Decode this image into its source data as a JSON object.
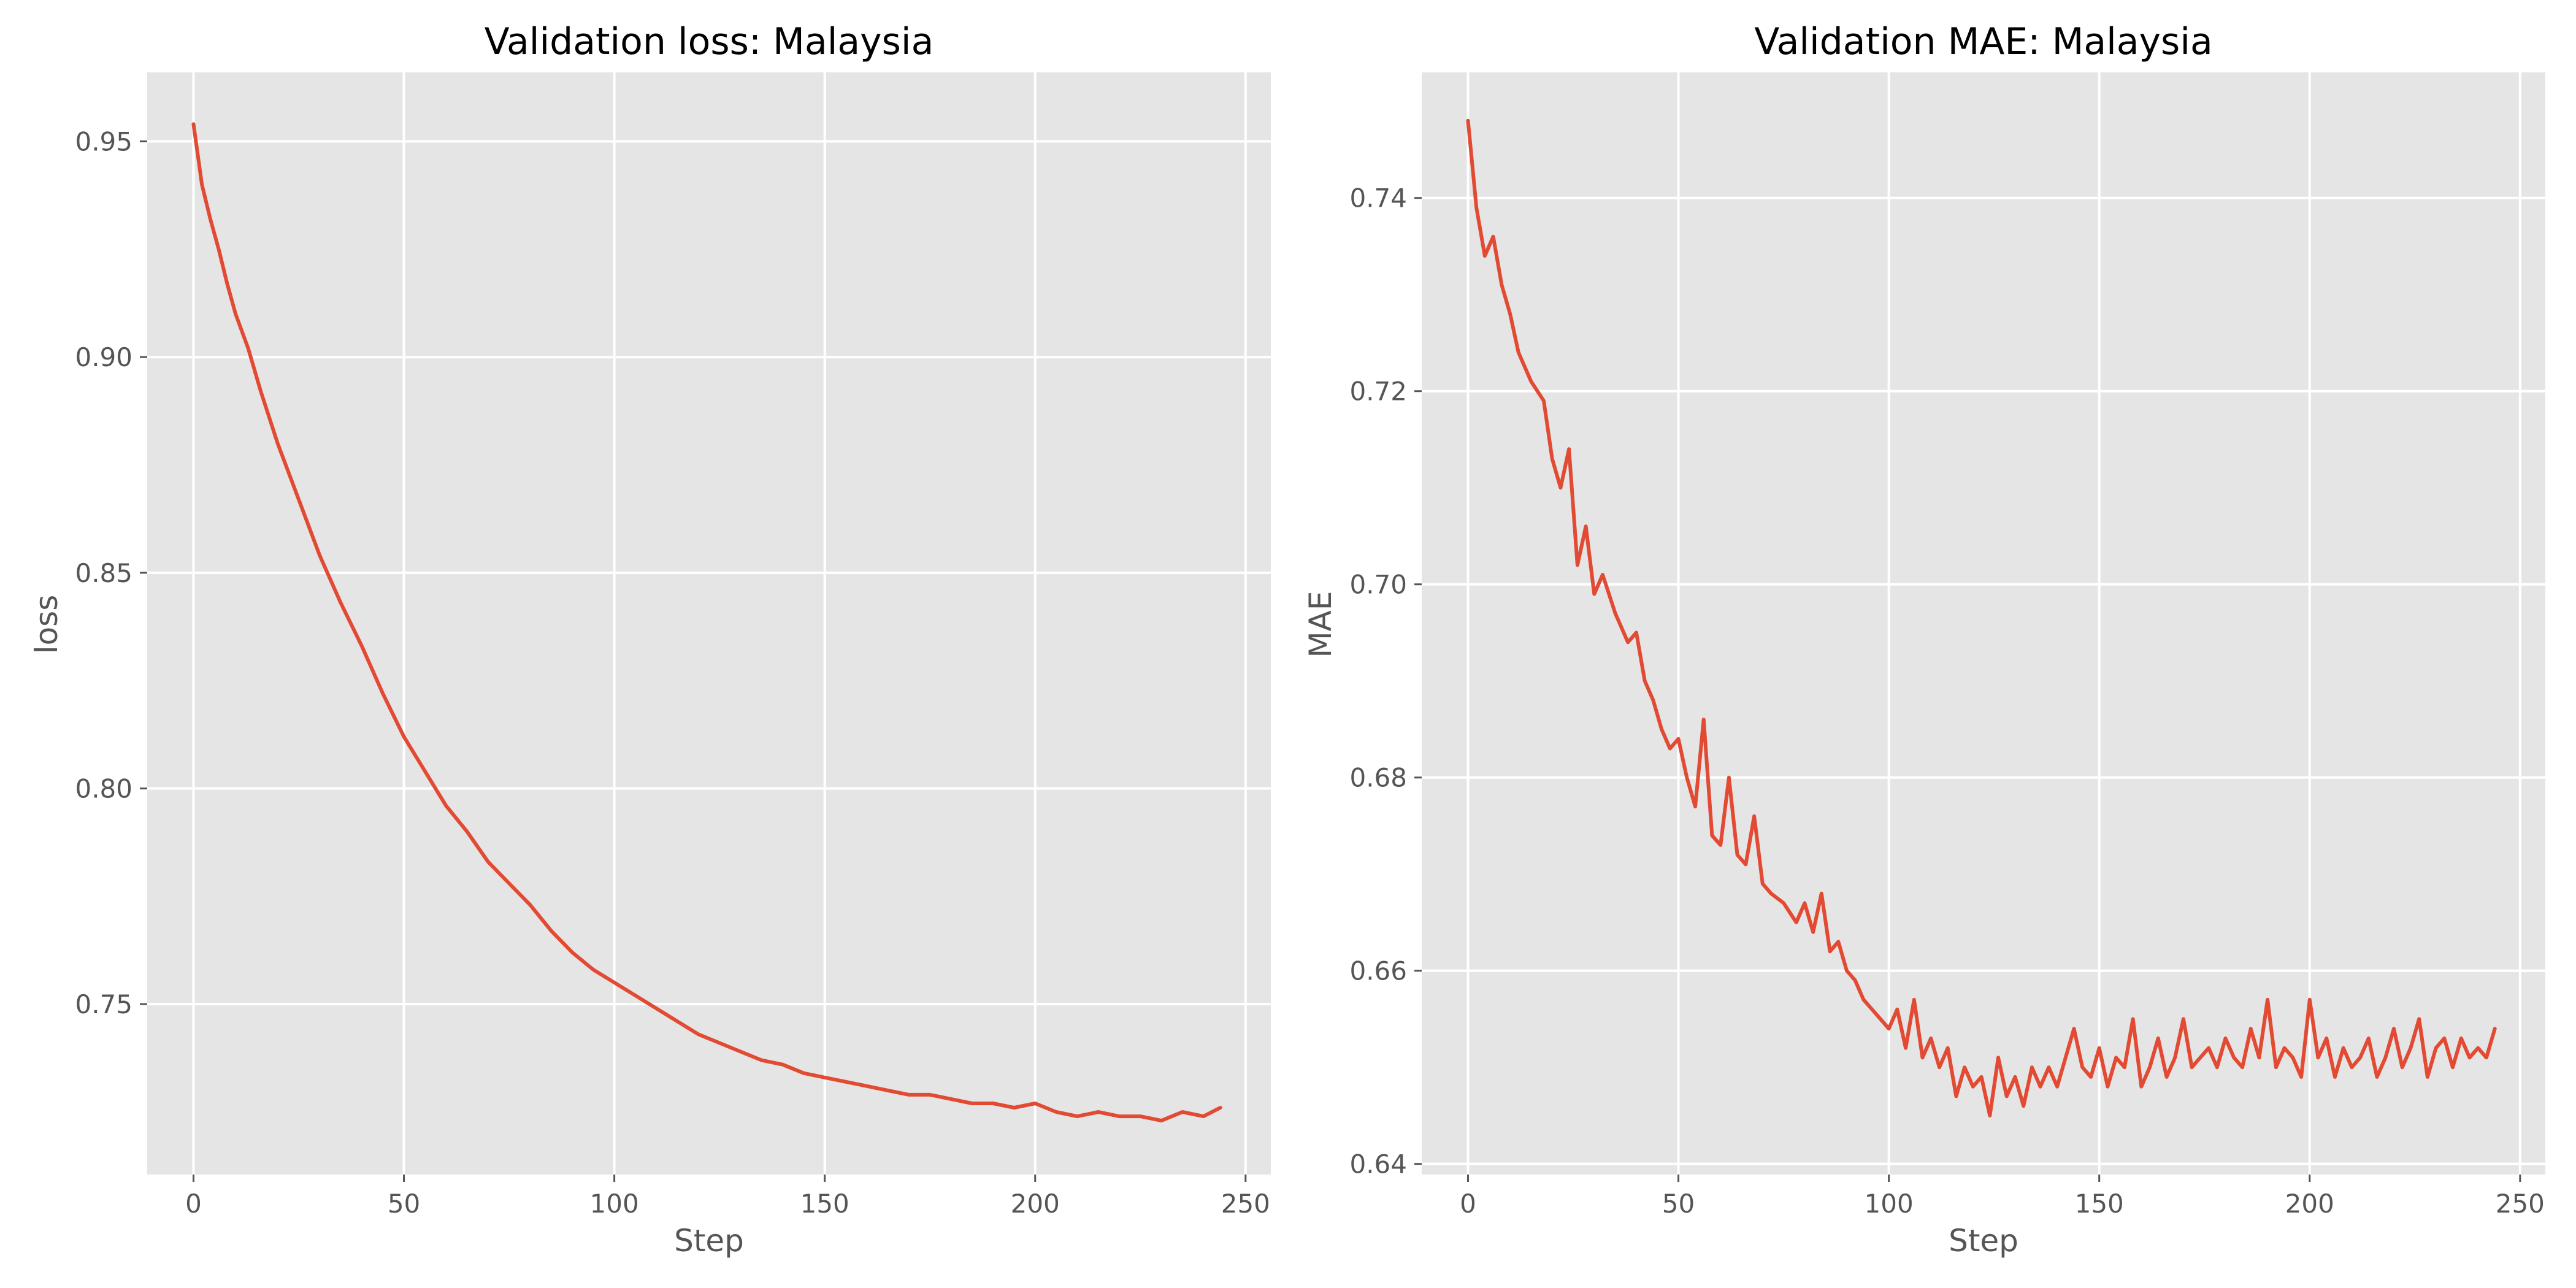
{
  "chart_data": [
    {
      "type": "line",
      "title": "Validation loss: Malaysia",
      "xlabel": "Step",
      "ylabel": "loss",
      "xlim": [
        -11,
        256
      ],
      "ylim": [
        0.7105,
        0.966
      ],
      "xticks": [
        0,
        50,
        100,
        150,
        200,
        250
      ],
      "xtick_labels": [
        "0",
        "50",
        "100",
        "150",
        "200",
        "250"
      ],
      "yticks": [
        0.75,
        0.8,
        0.85,
        0.9,
        0.95
      ],
      "ytick_labels": [
        "0.75",
        "0.80",
        "0.85",
        "0.90",
        "0.95"
      ],
      "grid": true,
      "legend": "none",
      "series": [
        {
          "color": "#E24A33",
          "x": [
            0,
            2,
            4,
            6,
            8,
            10,
            13,
            16,
            20,
            25,
            30,
            35,
            40,
            45,
            50,
            55,
            60,
            65,
            70,
            75,
            80,
            85,
            90,
            95,
            100,
            105,
            110,
            115,
            120,
            125,
            130,
            135,
            140,
            145,
            150,
            155,
            160,
            165,
            170,
            175,
            180,
            185,
            190,
            195,
            200,
            205,
            210,
            215,
            220,
            225,
            230,
            235,
            240,
            244
          ],
          "y": [
            0.954,
            0.94,
            0.932,
            0.925,
            0.917,
            0.91,
            0.902,
            0.892,
            0.88,
            0.867,
            0.854,
            0.843,
            0.833,
            0.822,
            0.812,
            0.804,
            0.796,
            0.79,
            0.783,
            0.778,
            0.773,
            0.767,
            0.762,
            0.758,
            0.755,
            0.752,
            0.749,
            0.746,
            0.743,
            0.741,
            0.739,
            0.737,
            0.736,
            0.734,
            0.733,
            0.732,
            0.731,
            0.73,
            0.729,
            0.729,
            0.728,
            0.727,
            0.727,
            0.726,
            0.727,
            0.725,
            0.724,
            0.725,
            0.724,
            0.724,
            0.723,
            0.725,
            0.724,
            0.726
          ]
        }
      ]
    },
    {
      "type": "line",
      "title": "Validation MAE: Malaysia",
      "xlabel": "Step",
      "ylabel": "MAE",
      "xlim": [
        -11,
        256
      ],
      "ylim": [
        0.6389,
        0.753
      ],
      "xticks": [
        0,
        50,
        100,
        150,
        200,
        250
      ],
      "xtick_labels": [
        "0",
        "50",
        "100",
        "150",
        "200",
        "250"
      ],
      "yticks": [
        0.64,
        0.66,
        0.68,
        0.7,
        0.72,
        0.74
      ],
      "ytick_labels": [
        "0.64",
        "0.66",
        "0.68",
        "0.70",
        "0.72",
        "0.74"
      ],
      "grid": true,
      "legend": "none",
      "series": [
        {
          "color": "#E24A33",
          "x": [
            0,
            2,
            4,
            6,
            8,
            10,
            12,
            15,
            18,
            20,
            22,
            24,
            26,
            28,
            30,
            32,
            35,
            38,
            40,
            42,
            44,
            46,
            48,
            50,
            52,
            54,
            56,
            58,
            60,
            62,
            64,
            66,
            68,
            70,
            72,
            75,
            78,
            80,
            82,
            84,
            86,
            88,
            90,
            92,
            94,
            96,
            98,
            100,
            102,
            104,
            106,
            108,
            110,
            112,
            114,
            116,
            118,
            120,
            122,
            124,
            126,
            128,
            130,
            132,
            134,
            136,
            138,
            140,
            142,
            144,
            146,
            148,
            150,
            152,
            154,
            156,
            158,
            160,
            162,
            164,
            166,
            168,
            170,
            172,
            174,
            176,
            178,
            180,
            182,
            184,
            186,
            188,
            190,
            192,
            194,
            196,
            198,
            200,
            202,
            204,
            206,
            208,
            210,
            212,
            214,
            216,
            218,
            220,
            222,
            224,
            226,
            228,
            230,
            232,
            234,
            236,
            238,
            240,
            242,
            244
          ],
          "y": [
            0.748,
            0.739,
            0.734,
            0.736,
            0.731,
            0.728,
            0.724,
            0.721,
            0.719,
            0.713,
            0.71,
            0.714,
            0.702,
            0.706,
            0.699,
            0.701,
            0.697,
            0.694,
            0.695,
            0.69,
            0.688,
            0.685,
            0.683,
            0.684,
            0.68,
            0.677,
            0.686,
            0.674,
            0.673,
            0.68,
            0.672,
            0.671,
            0.676,
            0.669,
            0.668,
            0.667,
            0.665,
            0.667,
            0.664,
            0.668,
            0.662,
            0.663,
            0.66,
            0.659,
            0.657,
            0.656,
            0.655,
            0.654,
            0.656,
            0.652,
            0.657,
            0.651,
            0.653,
            0.65,
            0.652,
            0.647,
            0.65,
            0.648,
            0.649,
            0.645,
            0.651,
            0.647,
            0.649,
            0.646,
            0.65,
            0.648,
            0.65,
            0.648,
            0.651,
            0.654,
            0.65,
            0.649,
            0.652,
            0.648,
            0.651,
            0.65,
            0.655,
            0.648,
            0.65,
            0.653,
            0.649,
            0.651,
            0.655,
            0.65,
            0.651,
            0.652,
            0.65,
            0.653,
            0.651,
            0.65,
            0.654,
            0.651,
            0.657,
            0.65,
            0.652,
            0.651,
            0.649,
            0.657,
            0.651,
            0.653,
            0.649,
            0.652,
            0.65,
            0.651,
            0.653,
            0.649,
            0.651,
            0.654,
            0.65,
            0.652,
            0.655,
            0.649,
            0.652,
            0.653,
            0.65,
            0.653,
            0.651,
            0.652,
            0.651,
            0.654
          ]
        }
      ]
    }
  ]
}
